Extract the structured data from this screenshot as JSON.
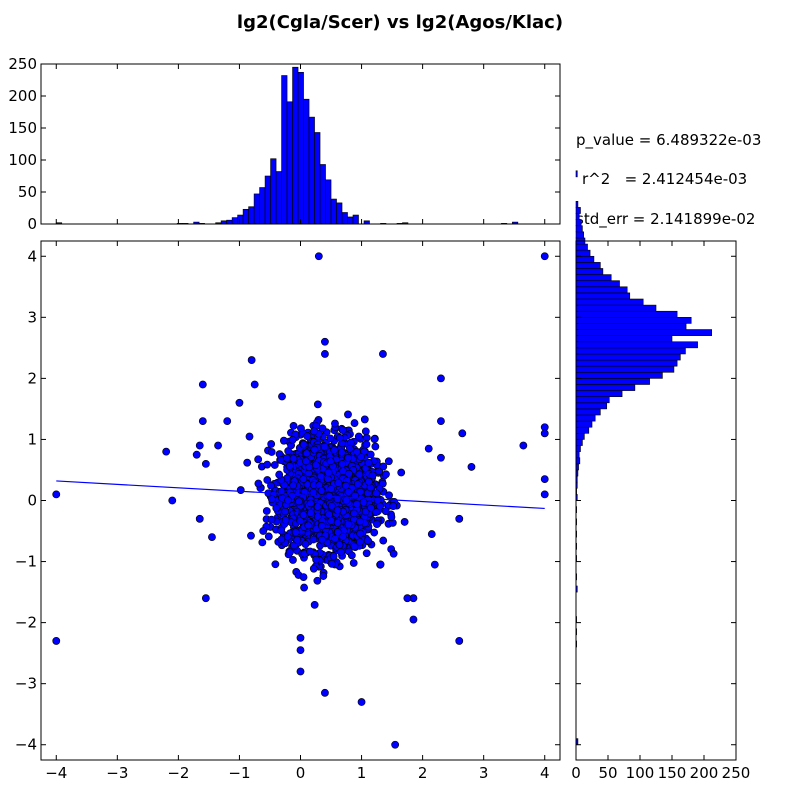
{
  "chart_data": {
    "type": "scatter",
    "title": "lg2(Cgla/Scer) vs lg2(Agos/Klac)",
    "xlabel": "",
    "ylabel": "",
    "colors": {
      "marker": "#0000ff",
      "edge": "#000000",
      "line": "#0000ff",
      "bar": "#0000ff"
    },
    "stats": {
      "p_value": "p_value = 6.489322e-03",
      "r2": "r^2   = 2.412454e-03",
      "std_err": "std_err = 2.141899e-02"
    },
    "scatter": {
      "xlim": [
        -4.25,
        4.25
      ],
      "ylim": [
        -4.25,
        4.25
      ],
      "xticks": [
        "−4",
        "−3",
        "−2",
        "−1",
        "0",
        "1",
        "2",
        "3",
        "4"
      ],
      "yticks": [
        "−4",
        "−3",
        "−2",
        "−1",
        "0",
        "1",
        "2",
        "3",
        "4"
      ],
      "cloud": {
        "center": [
          0.45,
          0.1
        ],
        "sd": [
          0.38,
          0.45
        ],
        "n": 2200
      },
      "outliers": [
        [
          0.3,
          4.0
        ],
        [
          4.0,
          4.0
        ],
        [
          0.4,
          2.6
        ],
        [
          1.35,
          2.4
        ],
        [
          -0.8,
          2.3
        ],
        [
          0.4,
          2.4
        ],
        [
          2.3,
          2.0
        ],
        [
          -1.6,
          1.9
        ],
        [
          -0.75,
          1.9
        ],
        [
          -1.0,
          1.6
        ],
        [
          -1.6,
          1.3
        ],
        [
          -1.2,
          1.3
        ],
        [
          2.3,
          1.3
        ],
        [
          2.65,
          1.1
        ],
        [
          4.0,
          1.2
        ],
        [
          4.0,
          1.1
        ],
        [
          3.65,
          0.9
        ],
        [
          -1.35,
          0.9
        ],
        [
          -1.65,
          0.9
        ],
        [
          -2.2,
          0.8
        ],
        [
          -1.7,
          0.75
        ],
        [
          2.1,
          0.85
        ],
        [
          2.3,
          0.7
        ],
        [
          2.8,
          0.55
        ],
        [
          -1.55,
          0.6
        ],
        [
          -4.0,
          0.1
        ],
        [
          -2.1,
          0.0
        ],
        [
          4.0,
          0.1
        ],
        [
          4.0,
          0.35
        ],
        [
          2.6,
          -0.3
        ],
        [
          -1.65,
          -0.3
        ],
        [
          -1.45,
          -0.6
        ],
        [
          2.15,
          -0.55
        ],
        [
          2.2,
          -1.05
        ],
        [
          -1.55,
          -1.6
        ],
        [
          1.85,
          -1.6
        ],
        [
          1.75,
          -1.6
        ],
        [
          -4.0,
          -2.3
        ],
        [
          2.6,
          -2.3
        ],
        [
          0.0,
          -2.25
        ],
        [
          0.0,
          -2.45
        ],
        [
          0.0,
          -2.8
        ],
        [
          0.4,
          -3.15
        ],
        [
          1.0,
          -3.3
        ],
        [
          1.55,
          -4.0
        ],
        [
          1.85,
          -1.95
        ]
      ],
      "regression": {
        "x": [
          -4.0,
          4.0
        ],
        "y": [
          0.32,
          -0.13
        ]
      }
    },
    "top_histogram": {
      "xlim": [
        -4.25,
        4.25
      ],
      "ylim": [
        0,
        250
      ],
      "yticks": [
        "0",
        "50",
        "100",
        "150",
        "200",
        "250"
      ],
      "bin_start": -4.0,
      "bin_width": 0.09,
      "counts": [
        2,
        0,
        0,
        0,
        0,
        0,
        0,
        0,
        0,
        0,
        0,
        0,
        0,
        0,
        0,
        0,
        0,
        0,
        0,
        0,
        0,
        0,
        1,
        1,
        0,
        3,
        1,
        0,
        0,
        2,
        5,
        6,
        10,
        14,
        23,
        27,
        47,
        57,
        75,
        102,
        82,
        232,
        191,
        245,
        237,
        195,
        167,
        143,
        93,
        69,
        39,
        33,
        18,
        11,
        14,
        0,
        5,
        0,
        0,
        1,
        0,
        0,
        1,
        2,
        0,
        0,
        0,
        0,
        0,
        0,
        0,
        0,
        0,
        0,
        0,
        0,
        0,
        0,
        0,
        0,
        0,
        1,
        0,
        3,
        0,
        0,
        0,
        0,
        0,
        0
      ]
    },
    "right_histogram": {
      "xlim": [
        0,
        250
      ],
      "ylim": [
        -4.25,
        4.25
      ],
      "xticks": [
        "0",
        "50",
        "100",
        "150",
        "200",
        "250"
      ],
      "bin_start": -4.0,
      "bin_width": 0.1,
      "counts": [
        3,
        0,
        0,
        0,
        0,
        0,
        0,
        0,
        0,
        0,
        0,
        0,
        0,
        0,
        0,
        0,
        1,
        0,
        1,
        0,
        1,
        0,
        0,
        0,
        0,
        2,
        0,
        1,
        0,
        0,
        1,
        0,
        1,
        0,
        1,
        0,
        1,
        0,
        1,
        0,
        2,
        1,
        2,
        2,
        3,
        4,
        6,
        5,
        7,
        10,
        13,
        20,
        25,
        30,
        38,
        48,
        52,
        72,
        92,
        115,
        135,
        153,
        158,
        163,
        171,
        190,
        150,
        212,
        172,
        180,
        158,
        125,
        105,
        84,
        80,
        68,
        55,
        42,
        38,
        28,
        22,
        18,
        14,
        12,
        10,
        8,
        5,
        7,
        3,
        0,
        0,
        0,
        0,
        2,
        0,
        0,
        0,
        0,
        0,
        0
      ]
    }
  }
}
